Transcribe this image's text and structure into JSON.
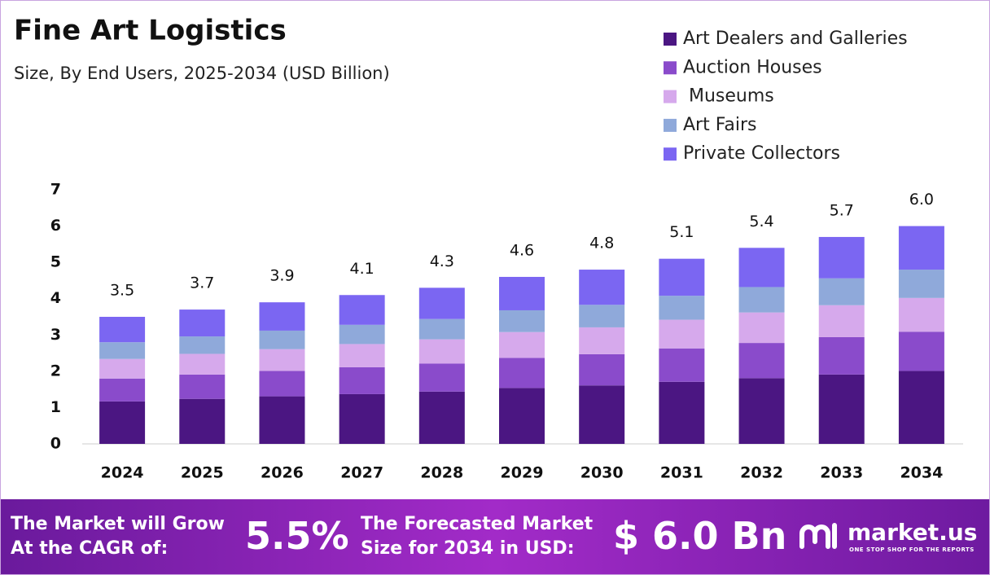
{
  "chart_data": {
    "type": "stacked_bar",
    "title": "Fine Art Logistics",
    "subtitle": "Size, By End Users, 2025-2034 (USD Billion)",
    "categories": [
      "2024",
      "2025",
      "2026",
      "2027",
      "2028",
      "2029",
      "2030",
      "2031",
      "2032",
      "2033",
      "2034"
    ],
    "series": [
      {
        "name": "Art Dealers and Galleries",
        "color": "#4b1682",
        "values": [
          1.17,
          1.24,
          1.31,
          1.37,
          1.44,
          1.54,
          1.61,
          1.71,
          1.81,
          1.91,
          2.01
        ]
      },
      {
        "name": "Auction Houses",
        "color": "#8a4bcb",
        "values": [
          0.63,
          0.67,
          0.7,
          0.74,
          0.77,
          0.83,
          0.86,
          0.92,
          0.97,
          1.03,
          1.08
        ]
      },
      {
        "name": " Museums",
        "color": "#d6a9ec",
        "values": [
          0.54,
          0.57,
          0.6,
          0.64,
          0.67,
          0.71,
          0.74,
          0.79,
          0.84,
          0.88,
          0.93
        ]
      },
      {
        "name": "Art Fairs",
        "color": "#8fa9da",
        "values": [
          0.46,
          0.48,
          0.51,
          0.53,
          0.56,
          0.6,
          0.62,
          0.66,
          0.7,
          0.74,
          0.78
        ]
      },
      {
        "name": "Private Collectors",
        "color": "#7b66f2",
        "values": [
          0.7,
          0.74,
          0.78,
          0.82,
          0.86,
          0.92,
          0.97,
          1.02,
          1.08,
          1.14,
          1.2
        ]
      }
    ],
    "totals": {
      "values": [
        3.5,
        3.7,
        3.9,
        4.1,
        4.3,
        4.6,
        4.8,
        5.1,
        5.4,
        5.7,
        6.0
      ],
      "value_labels": [
        "3.5",
        "3.7",
        "3.9",
        "4.1",
        "4.3",
        "4.6",
        "4.8",
        "5.1",
        "5.4",
        "5.7",
        "6.0"
      ]
    },
    "ylim": [
      0,
      7
    ],
    "yticks": [
      0,
      1,
      2,
      3,
      4,
      5,
      6,
      7
    ],
    "grid": false
  },
  "footer": {
    "cagr_text": "The Market will Grow At the CAGR of:",
    "cagr": "5.5%",
    "forecast_text": "The Forecasted Market Size for 2034 in USD:",
    "forecast": "$ 6.0 Bn",
    "brand": "market.us",
    "tagline": "ONE STOP SHOP FOR THE REPORTS"
  }
}
